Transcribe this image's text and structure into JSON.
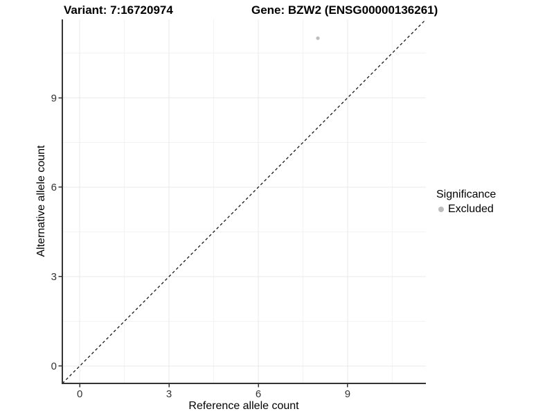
{
  "titles": {
    "variant": "Variant: 7:16720974",
    "gene": "Gene: BZW2 (ENSG00000136261)"
  },
  "chart_data": {
    "type": "scatter",
    "xlabel": "Reference allele count",
    "ylabel": "Alternative allele count",
    "xlim": [
      -0.585,
      11.63
    ],
    "ylim": [
      -0.585,
      11.63
    ],
    "x_ticks": [
      0,
      3,
      6,
      9
    ],
    "y_ticks": [
      0,
      3,
      6,
      9
    ],
    "minor_ticks": [
      1.5,
      4.5,
      7.5,
      10.5
    ],
    "grid": true,
    "points": [
      {
        "x": 8,
        "y": 11,
        "series": "Excluded"
      }
    ],
    "identity_line": {
      "slope": 1,
      "intercept": 0,
      "style": "dashed"
    },
    "legend": {
      "title": "Significance",
      "position": "right",
      "items": [
        {
          "label": "Excluded",
          "color": "#bdbdbd"
        }
      ]
    }
  },
  "colors": {
    "point": "#bdbdbd",
    "axis_line": "#333333",
    "tick_mark": "#333333",
    "tick_label": "#333333",
    "major_grid": "#e8e8e8",
    "minor_grid": "#f3f3f3",
    "abline": "#141414",
    "title_text": "#000000"
  }
}
